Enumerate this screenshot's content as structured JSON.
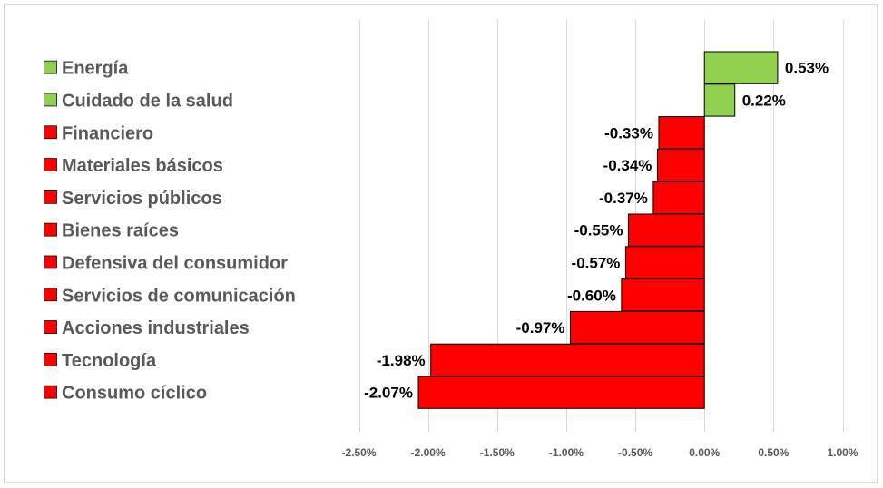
{
  "chart_data": {
    "type": "bar",
    "orientation": "horizontal",
    "categories": [
      "Energía",
      "Cuidado de la salud",
      "Financiero",
      "Materiales básicos",
      "Servicios públicos",
      "Bienes raíces",
      "Defensiva del consumidor",
      "Servicios de comunicación",
      "Acciones industriales",
      "Tecnología",
      "Consumo cíclico"
    ],
    "values": [
      0.53,
      0.22,
      -0.33,
      -0.34,
      -0.37,
      -0.55,
      -0.57,
      -0.6,
      -0.97,
      -1.98,
      -2.07
    ],
    "value_labels": [
      "0.53%",
      "0.22%",
      "-0.33%",
      "-0.34%",
      "-0.37%",
      "-0.55%",
      "-0.57%",
      "-0.60%",
      "-0.97%",
      "-1.98%",
      "-2.07%"
    ],
    "xlim": [
      -2.5,
      1.0
    ],
    "x_ticks": [
      -2.5,
      -2.0,
      -1.5,
      -1.0,
      -0.5,
      0.0,
      0.5,
      1.0
    ],
    "x_tick_labels": [
      "-2.50%",
      "-2.00%",
      "-1.50%",
      "-1.00%",
      "-0.50%",
      "0.00%",
      "0.50%",
      "1.00%"
    ],
    "grid": "vertical",
    "legend": "left",
    "colors": {
      "positive": "#92d050",
      "negative": "#ff0000",
      "bar_border": "#000000",
      "gridline": "#d9d9d9",
      "category_text": "#595959"
    },
    "title": "",
    "xlabel": "",
    "ylabel": ""
  }
}
